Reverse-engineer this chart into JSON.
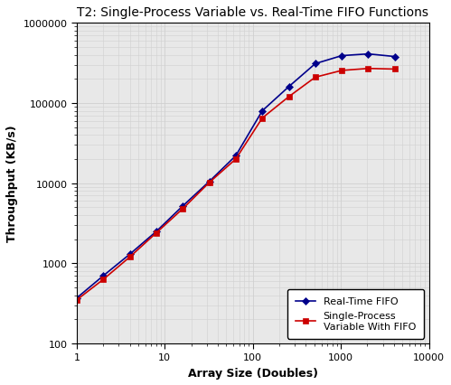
{
  "title": "T2: Single-Process Variable vs. Real-Time FIFO Functions",
  "xlabel": "Array Size (Doubles)",
  "ylabel": "Throughput (KB/s)",
  "xlim": [
    1,
    10000
  ],
  "ylim": [
    100,
    1000000
  ],
  "figure_bg": "#ffffff",
  "plot_bg": "#e8e8e8",
  "rt_fifo": {
    "x": [
      1,
      2,
      4,
      8,
      16,
      32,
      64,
      128,
      256,
      512,
      1024,
      2048,
      4096
    ],
    "y": [
      370,
      700,
      1300,
      2500,
      5200,
      10500,
      22000,
      80000,
      160000,
      310000,
      390000,
      410000,
      380000
    ],
    "color": "#00008B",
    "marker": "D",
    "label": "Real-Time FIFO",
    "linewidth": 1.2,
    "markersize": 4
  },
  "sp_variable": {
    "x": [
      1,
      2,
      4,
      8,
      16,
      32,
      64,
      128,
      256,
      512,
      1024,
      2048,
      4096
    ],
    "y": [
      350,
      630,
      1200,
      2400,
      4800,
      10200,
      20000,
      65000,
      120000,
      210000,
      255000,
      270000,
      265000
    ],
    "color": "#CC0000",
    "marker": "s",
    "label": "Single-Process\nVariable With FIFO",
    "linewidth": 1.2,
    "markersize": 4
  },
  "yticks": [
    100,
    1000,
    10000,
    100000,
    1000000
  ],
  "ytick_labels": [
    "100",
    "1000",
    "10000",
    "100000",
    "1000000"
  ],
  "xticks": [
    1,
    10,
    100,
    1000,
    10000
  ],
  "xtick_labels": [
    "1",
    "10",
    "100",
    "1000",
    "10000"
  ],
  "grid_color": "#d0d0d0",
  "title_fontsize": 10,
  "axis_label_fontsize": 9,
  "tick_fontsize": 8,
  "legend_fontsize": 8
}
